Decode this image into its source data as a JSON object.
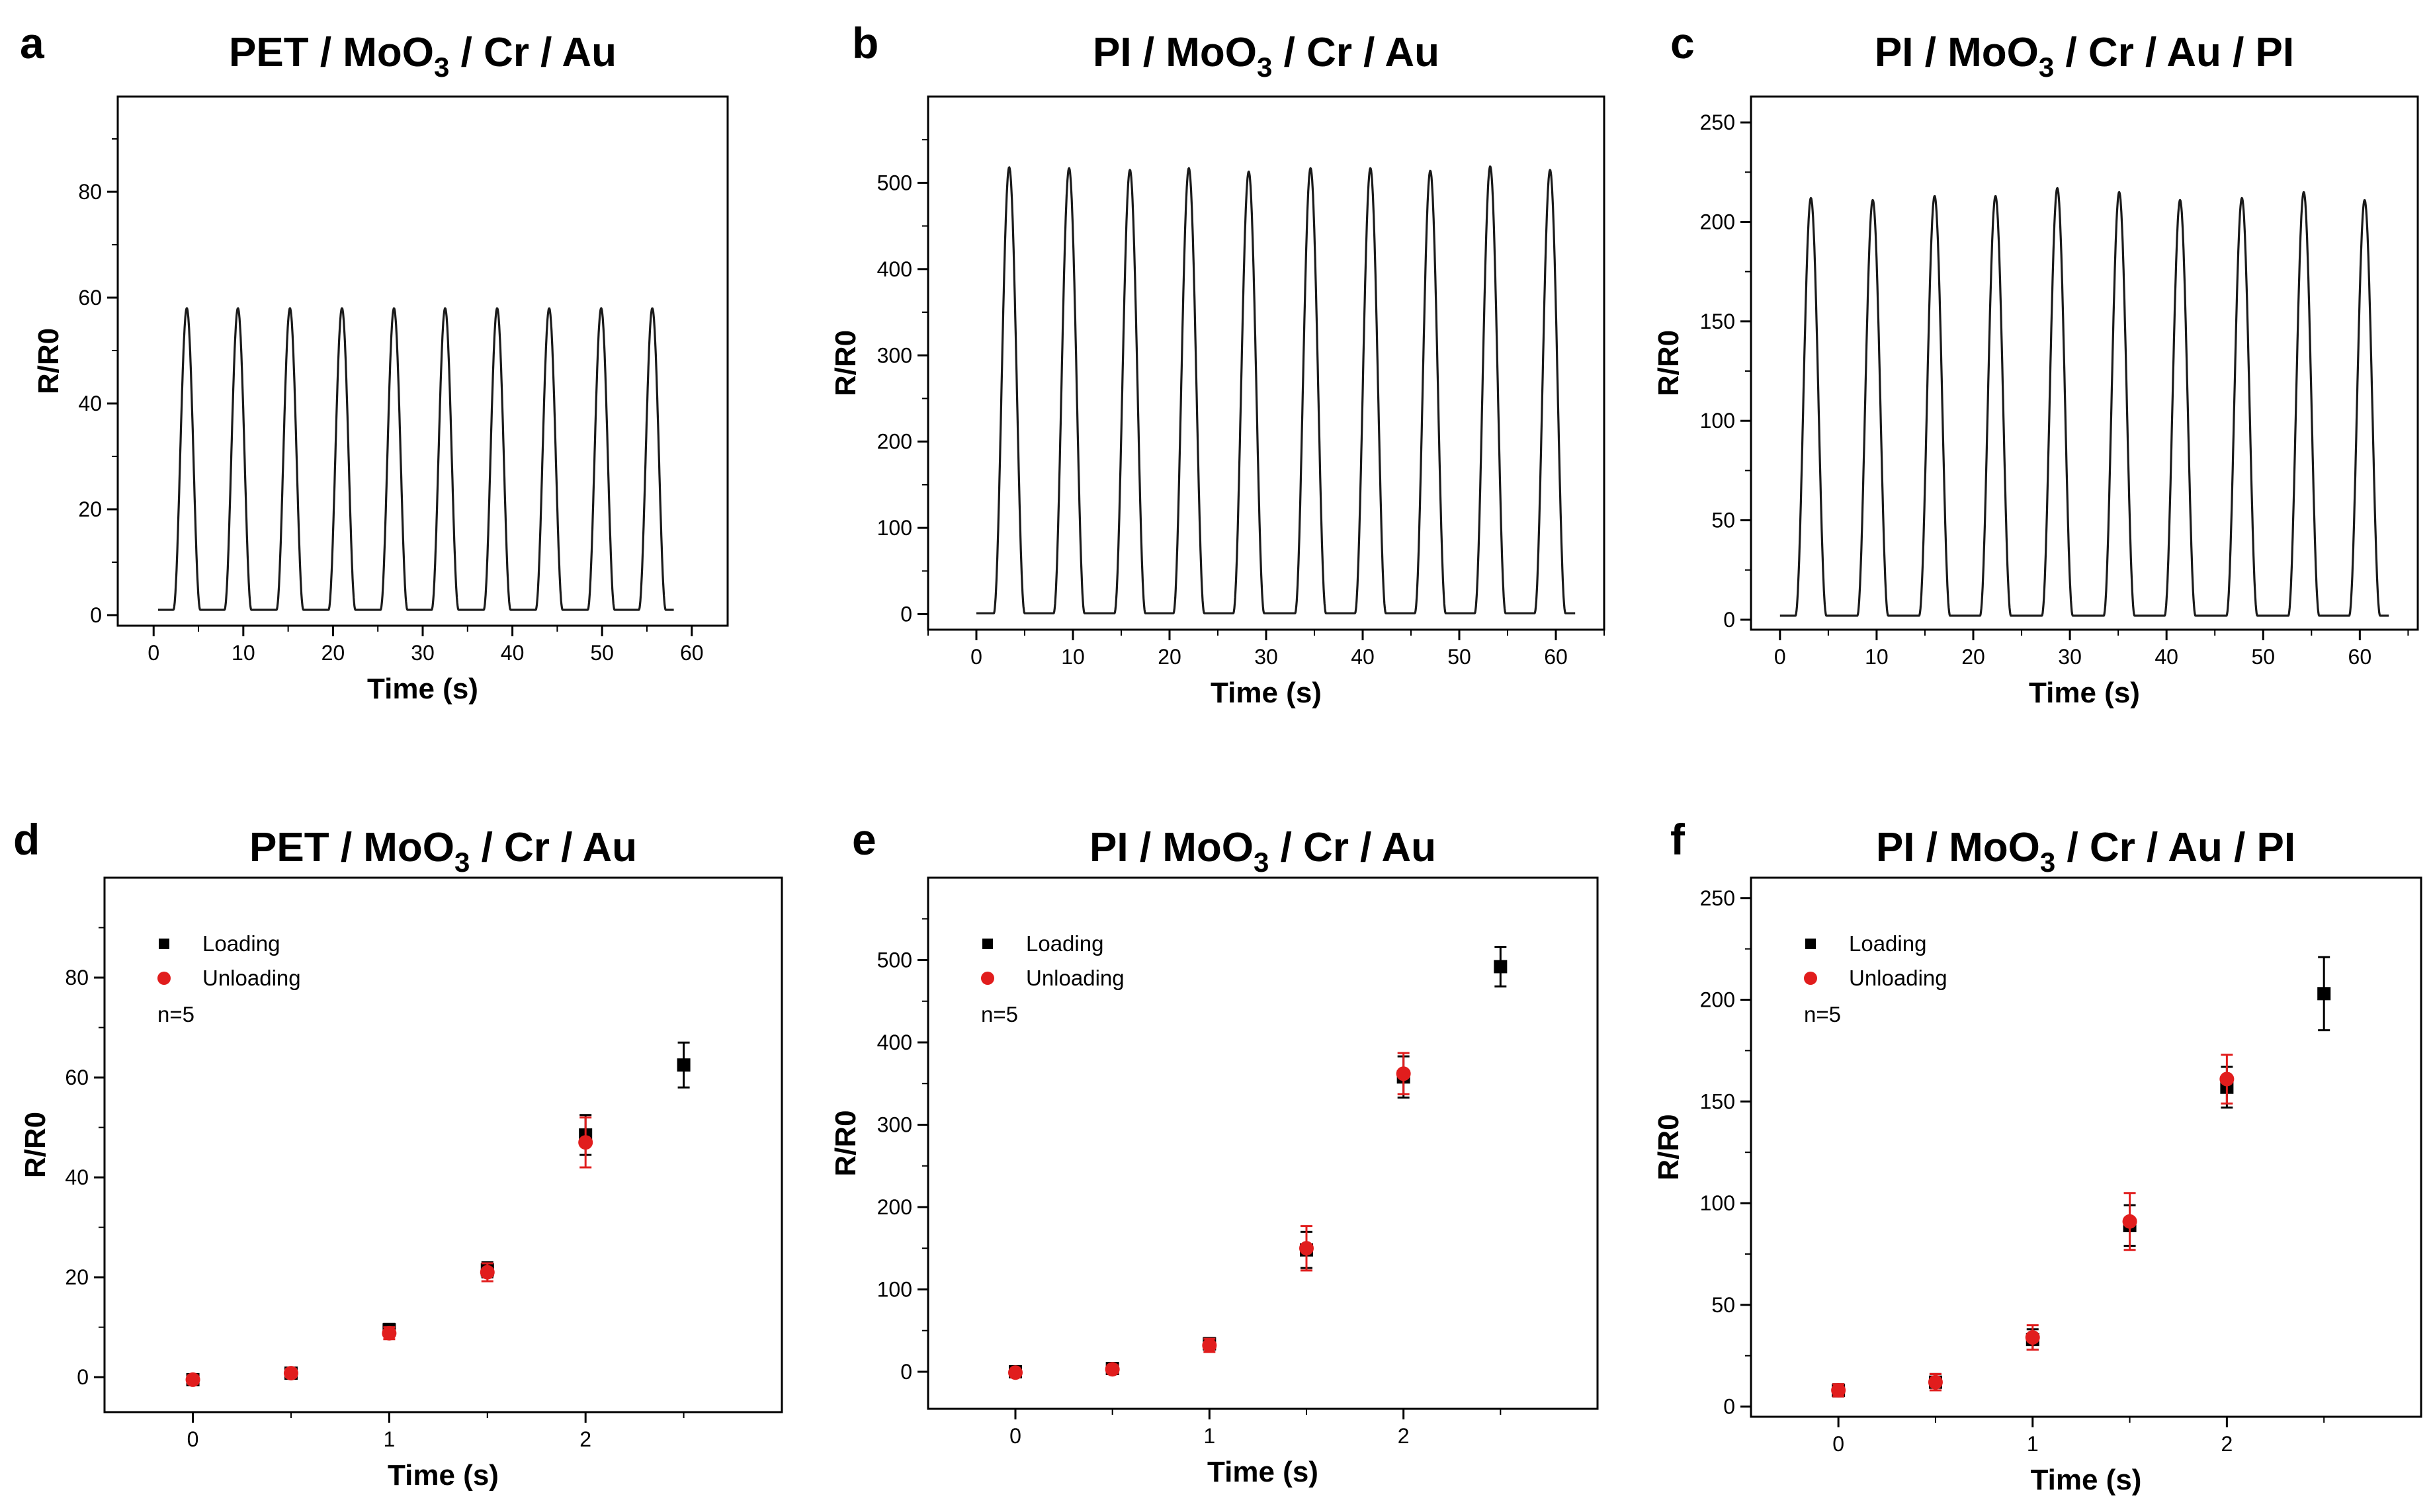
{
  "chart_data": [
    {
      "panel": "a",
      "type": "line",
      "title_parts": [
        "PET / MoO",
        "3",
        " / Cr / Au"
      ],
      "xlabel": "Time (s)",
      "ylabel": "R/R0",
      "xlim": [
        -4,
        64
      ],
      "ylim": [
        -2,
        98
      ],
      "xticks": [
        0,
        10,
        20,
        30,
        40,
        50,
        60
      ],
      "yticks": [
        0,
        20,
        40,
        60,
        80
      ],
      "x_tick_labels": [
        "0",
        "10",
        "20",
        "30",
        "40",
        "50",
        "60"
      ],
      "y_tick_labels": [
        "0",
        "20",
        "40",
        "60",
        "80"
      ],
      "series": [
        {
          "name": "R/R0",
          "baseline": 1,
          "x_start": 0.5,
          "x_end": 58,
          "peaks": [
            {
              "x": 3.7,
              "y": 58
            },
            {
              "x": 9.4,
              "y": 58
            },
            {
              "x": 15.2,
              "y": 58
            },
            {
              "x": 21.0,
              "y": 58
            },
            {
              "x": 26.8,
              "y": 58
            },
            {
              "x": 32.5,
              "y": 58
            },
            {
              "x": 38.3,
              "y": 58
            },
            {
              "x": 44.1,
              "y": 58
            },
            {
              "x": 49.9,
              "y": 58
            },
            {
              "x": 55.6,
              "y": 58
            }
          ],
          "peak_width": 3.0
        }
      ]
    },
    {
      "panel": "b",
      "type": "line",
      "title_parts": [
        "PI / MoO",
        "3",
        " / Cr / Au"
      ],
      "xlabel": "Time (s)",
      "ylabel": "R/R0",
      "xlim": [
        -5,
        65
      ],
      "ylim": [
        -18,
        600
      ],
      "xticks": [
        0,
        10,
        20,
        30,
        40,
        50,
        60
      ],
      "yticks": [
        0,
        100,
        200,
        300,
        400,
        500
      ],
      "x_tick_labels": [
        "0",
        "10",
        "20",
        "30",
        "40",
        "50",
        "60"
      ],
      "y_tick_labels": [
        "0",
        "100",
        "200",
        "300",
        "400",
        "500"
      ],
      "series": [
        {
          "name": "R/R0",
          "baseline": 1,
          "x_start": 0,
          "x_end": 62,
          "peaks": [
            {
              "x": 3.4,
              "y": 518
            },
            {
              "x": 9.6,
              "y": 517
            },
            {
              "x": 15.9,
              "y": 515
            },
            {
              "x": 22.0,
              "y": 517
            },
            {
              "x": 28.2,
              "y": 513
            },
            {
              "x": 34.6,
              "y": 517
            },
            {
              "x": 40.8,
              "y": 517
            },
            {
              "x": 47.0,
              "y": 514
            },
            {
              "x": 53.2,
              "y": 519
            },
            {
              "x": 59.4,
              "y": 515
            }
          ],
          "peak_width": 3.2
        }
      ]
    },
    {
      "panel": "c",
      "type": "line",
      "title_parts": [
        "PI / MoO",
        "3",
        " / Cr / Au / PI"
      ],
      "xlabel": "Time (s)",
      "ylabel": "R/R0",
      "xlim": [
        -3,
        66
      ],
      "ylim": [
        -5,
        263
      ],
      "xticks": [
        0,
        10,
        20,
        30,
        40,
        50,
        60
      ],
      "yticks": [
        0,
        50,
        100,
        150,
        200,
        250
      ],
      "x_tick_labels": [
        "0",
        "10",
        "20",
        "30",
        "40",
        "50",
        "60"
      ],
      "y_tick_labels": [
        "0",
        "50",
        "100",
        "150",
        "200",
        "250"
      ],
      "series": [
        {
          "name": "R/R0",
          "baseline": 2,
          "x_start": 0,
          "x_end": 63,
          "peaks": [
            {
              "x": 3.2,
              "y": 212
            },
            {
              "x": 9.6,
              "y": 211
            },
            {
              "x": 16.0,
              "y": 213
            },
            {
              "x": 22.3,
              "y": 213
            },
            {
              "x": 28.7,
              "y": 217
            },
            {
              "x": 35.1,
              "y": 215
            },
            {
              "x": 41.4,
              "y": 211
            },
            {
              "x": 47.8,
              "y": 212
            },
            {
              "x": 54.2,
              "y": 215
            },
            {
              "x": 60.5,
              "y": 211
            }
          ],
          "peak_width": 3.2
        }
      ]
    },
    {
      "panel": "d",
      "type": "scatter",
      "title_parts": [
        "PET / MoO",
        "3",
        " / Cr / Au"
      ],
      "xlabel": "Time (s)",
      "ylabel": "R/R0",
      "xlim": [
        -0.45,
        3.0
      ],
      "ylim": [
        -7,
        100
      ],
      "xticks": [
        0,
        1,
        2
      ],
      "yticks": [
        0,
        20,
        40,
        60,
        80
      ],
      "x_tick_labels": [
        "0",
        "1",
        "2"
      ],
      "y_tick_labels": [
        "0",
        "20",
        "40",
        "60",
        "80"
      ],
      "legend": [
        "Loading",
        "Unloading"
      ],
      "note": "n=5",
      "series": [
        {
          "name": "Loading",
          "color": "#000000",
          "marker": "square",
          "x": [
            0,
            0.5,
            1,
            1.5,
            2,
            2.5
          ],
          "y": [
            -0.5,
            0.8,
            9.5,
            21.5,
            48.5,
            62.5
          ],
          "err": [
            0.8,
            0.8,
            1.2,
            1.5,
            4.0,
            4.5
          ]
        },
        {
          "name": "Unloading",
          "color": "#e11d1d",
          "marker": "circle",
          "x": [
            0,
            0.5,
            1,
            1.5,
            2
          ],
          "y": [
            -0.5,
            0.8,
            8.8,
            21.0,
            47.0
          ],
          "err": [
            0.8,
            0.8,
            1.2,
            1.8,
            5.0
          ]
        }
      ]
    },
    {
      "panel": "e",
      "type": "scatter",
      "title_parts": [
        "PI / MoO",
        "3",
        " / Cr / Au"
      ],
      "xlabel": "Time (s)",
      "ylabel": "R/R0",
      "xlim": [
        -0.45,
        3.0
      ],
      "ylim": [
        -45,
        600
      ],
      "xticks": [
        0,
        1,
        2
      ],
      "yticks": [
        0,
        100,
        200,
        300,
        400,
        500
      ],
      "x_tick_labels": [
        "0",
        "1",
        "2"
      ],
      "y_tick_labels": [
        "0",
        "100",
        "200",
        "300",
        "400",
        "500"
      ],
      "legend": [
        "Loading",
        "Unloading"
      ],
      "note": "n=5",
      "series": [
        {
          "name": "Loading",
          "color": "#000000",
          "marker": "square",
          "x": [
            0,
            0.5,
            1,
            1.5,
            2,
            2.5
          ],
          "y": [
            0,
            4,
            34,
            148,
            358,
            492
          ],
          "err": [
            3,
            5,
            7,
            22,
            25,
            24
          ]
        },
        {
          "name": "Unloading",
          "color": "#e11d1d",
          "marker": "circle",
          "x": [
            0,
            0.5,
            1,
            1.5,
            2
          ],
          "y": [
            -1,
            3,
            32,
            150,
            362
          ],
          "err": [
            3,
            5,
            8,
            27,
            25
          ]
        }
      ]
    },
    {
      "panel": "f",
      "type": "scatter",
      "title_parts": [
        "PI / MoO",
        "3",
        " / Cr / Au / PI"
      ],
      "xlabel": "Time (s)",
      "ylabel": "R/R0",
      "xlim": [
        -0.45,
        3.0
      ],
      "ylim": [
        -5,
        260
      ],
      "xticks": [
        0,
        1,
        2
      ],
      "yticks": [
        0,
        50,
        100,
        150,
        200,
        250
      ],
      "x_tick_labels": [
        "0",
        "1",
        "2"
      ],
      "y_tick_labels": [
        "0",
        "50",
        "100",
        "150",
        "200",
        "250"
      ],
      "legend": [
        "Loading",
        "Unloading"
      ],
      "note": "n=5",
      "series": [
        {
          "name": "Loading",
          "color": "#000000",
          "marker": "square",
          "x": [
            0,
            0.5,
            1,
            1.5,
            2,
            2.5
          ],
          "y": [
            8,
            12,
            33,
            89,
            157,
            203
          ],
          "err": [
            3,
            4,
            5,
            10,
            10,
            18
          ]
        },
        {
          "name": "Unloading",
          "color": "#e11d1d",
          "marker": "circle",
          "x": [
            0,
            0.5,
            1,
            1.5,
            2
          ],
          "y": [
            8,
            12,
            34,
            91,
            161
          ],
          "err": [
            3,
            4,
            6,
            14,
            12
          ]
        }
      ]
    }
  ]
}
